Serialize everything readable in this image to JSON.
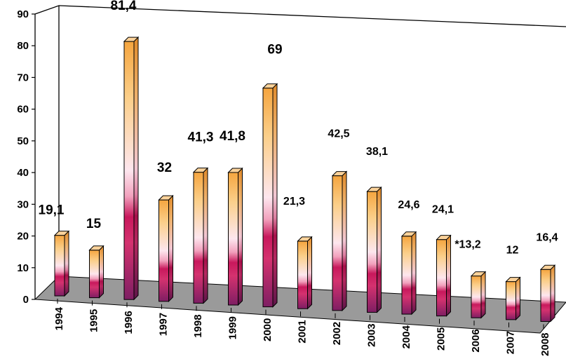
{
  "chart_data": {
    "type": "bar",
    "categories": [
      "1994",
      "1995",
      "1996",
      "1997",
      "1998",
      "1999",
      "2000",
      "2001",
      "2002",
      "2003",
      "2004",
      "2005",
      "2006",
      "2007",
      "2008"
    ],
    "values": [
      19.1,
      15,
      81.4,
      32,
      41.3,
      41.8,
      69,
      21.3,
      42.5,
      38.1,
      24.6,
      24.1,
      13.2,
      12,
      16.4
    ],
    "data_labels": [
      "19,1",
      "15",
      "81,4",
      "32",
      "41,3",
      "41,8",
      "69",
      "21,3",
      "42,5",
      "38,1",
      "24,6",
      "24,1",
      "*13,2",
      "12",
      "16,4"
    ],
    "y_ticks": [
      "0",
      "10",
      "20",
      "30",
      "40",
      "50",
      "60",
      "70",
      "80",
      "90"
    ],
    "ylim": [
      0,
      90
    ],
    "grid": false,
    "legend": "none",
    "three_d": true,
    "colors": {
      "bar_top": "#f5a53f",
      "bar_mid": "#fde6ee",
      "bar_band": "#c8185c",
      "bar_bottom": "#7e1e63",
      "floor": "#9a9a9a",
      "axis": "#000000"
    }
  }
}
